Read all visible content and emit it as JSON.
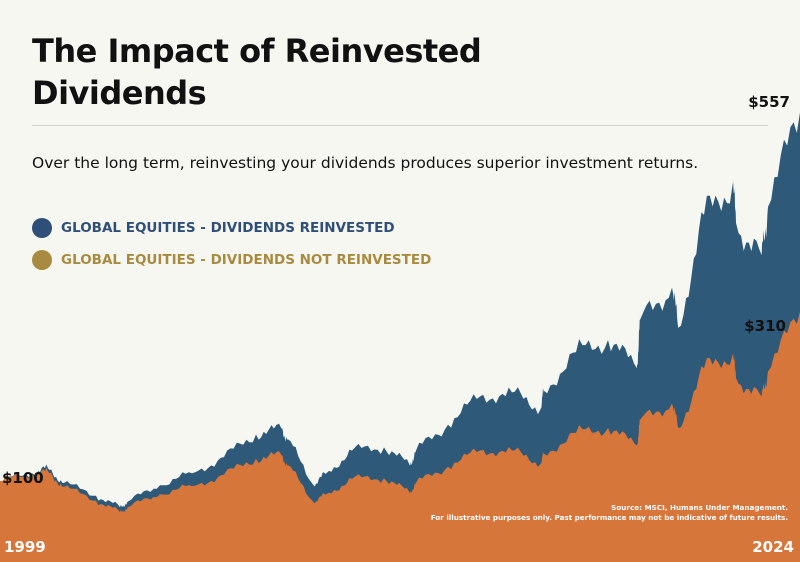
{
  "title": "The Impact of Reinvested Dividends",
  "subtitle": "Over the long term, reinvesting your dividends produces superior investment returns.",
  "colors": {
    "background": "#f7f7f2",
    "reinvested": "#2f5979",
    "not_reinvested": "#d7763b",
    "reinvested_legend": "#2f4f78",
    "not_reinvested_legend": "#a88b40"
  },
  "chart_data": {
    "type": "area",
    "x_start_label": "1999",
    "x_end_label": "2024",
    "start_value_label": "$100",
    "reinvested_end_label": "$557",
    "not_reinvested_end_label": "$310",
    "ylim": [
      0,
      560
    ],
    "x": [
      1999,
      2000,
      2000.5,
      2001,
      2002,
      2002.75,
      2003,
      2004,
      2005,
      2006,
      2007,
      2007.8,
      2008,
      2008.8,
      2009.2,
      2010,
      2011,
      2011.8,
      2012,
      2013,
      2014,
      2015,
      2015.9,
      2016,
      2017,
      2018,
      2018.9,
      2019,
      2020,
      2020.2,
      2021,
      2021.9,
      2022,
      2022.8,
      2023,
      2024
    ],
    "series": [
      {
        "name": "GLOBAL EQUITIES - DIVIDENDS REINVESTED",
        "values": [
          100,
          110,
          116,
          98,
          82,
          68,
          75,
          95,
          110,
          130,
          158,
          165,
          152,
          95,
          110,
          138,
          142,
          120,
          138,
          170,
          205,
          210,
          190,
          212,
          260,
          275,
          240,
          300,
          340,
          290,
          430,
          470,
          420,
          380,
          440,
          557
        ]
      },
      {
        "name": "GLOBAL EQUITIES - DIVIDENDS NOT REINVESTED",
        "values": [
          100,
          108,
          112,
          93,
          76,
          62,
          68,
          84,
          94,
          108,
          128,
          132,
          120,
          74,
          84,
          103,
          104,
          86,
          98,
          118,
          138,
          138,
          122,
          134,
          160,
          166,
          144,
          176,
          196,
          166,
          240,
          258,
          228,
          205,
          236,
          310
        ]
      }
    ]
  },
  "source_lines": [
    "Source: MSCI, Humans Under Management.",
    "For illustrative purposes only. Past performance may not be indicative of future results."
  ]
}
